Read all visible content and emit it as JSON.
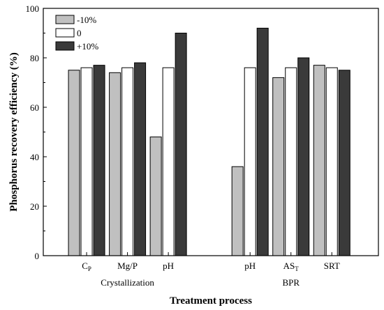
{
  "chart_data": {
    "type": "bar",
    "xlabel": "Treatment process",
    "ylabel": "Phosphorus recovery efficiency (%)",
    "ylim": [
      0,
      100
    ],
    "yticks": [
      "0",
      "20",
      "40",
      "60",
      "80",
      "100"
    ],
    "grid": false,
    "legend_position": "top-left",
    "categories": [
      {
        "main": "C",
        "sub": "P"
      },
      {
        "main": "Mg/P",
        "sub": ""
      },
      {
        "main": "pH",
        "sub": ""
      },
      {
        "main": "pH",
        "sub": ""
      },
      {
        "main": "AS",
        "sub": "T"
      },
      {
        "main": "SRT",
        "sub": ""
      }
    ],
    "groups": [
      {
        "label": "Crystallization",
        "category_indices": [
          0,
          1,
          2
        ]
      },
      {
        "label": "BPR",
        "category_indices": [
          3,
          4,
          5
        ]
      }
    ],
    "series": [
      {
        "name": "-10%",
        "color": "#c0c0c0",
        "values": [
          75,
          74,
          48,
          36,
          72,
          77
        ]
      },
      {
        "name": "0",
        "color": "#ffffff",
        "values": [
          76,
          76,
          76,
          76,
          76,
          76
        ]
      },
      {
        "name": "+10%",
        "color": "#3a3a3a",
        "values": [
          77,
          78,
          90,
          92,
          80,
          75
        ]
      }
    ]
  }
}
